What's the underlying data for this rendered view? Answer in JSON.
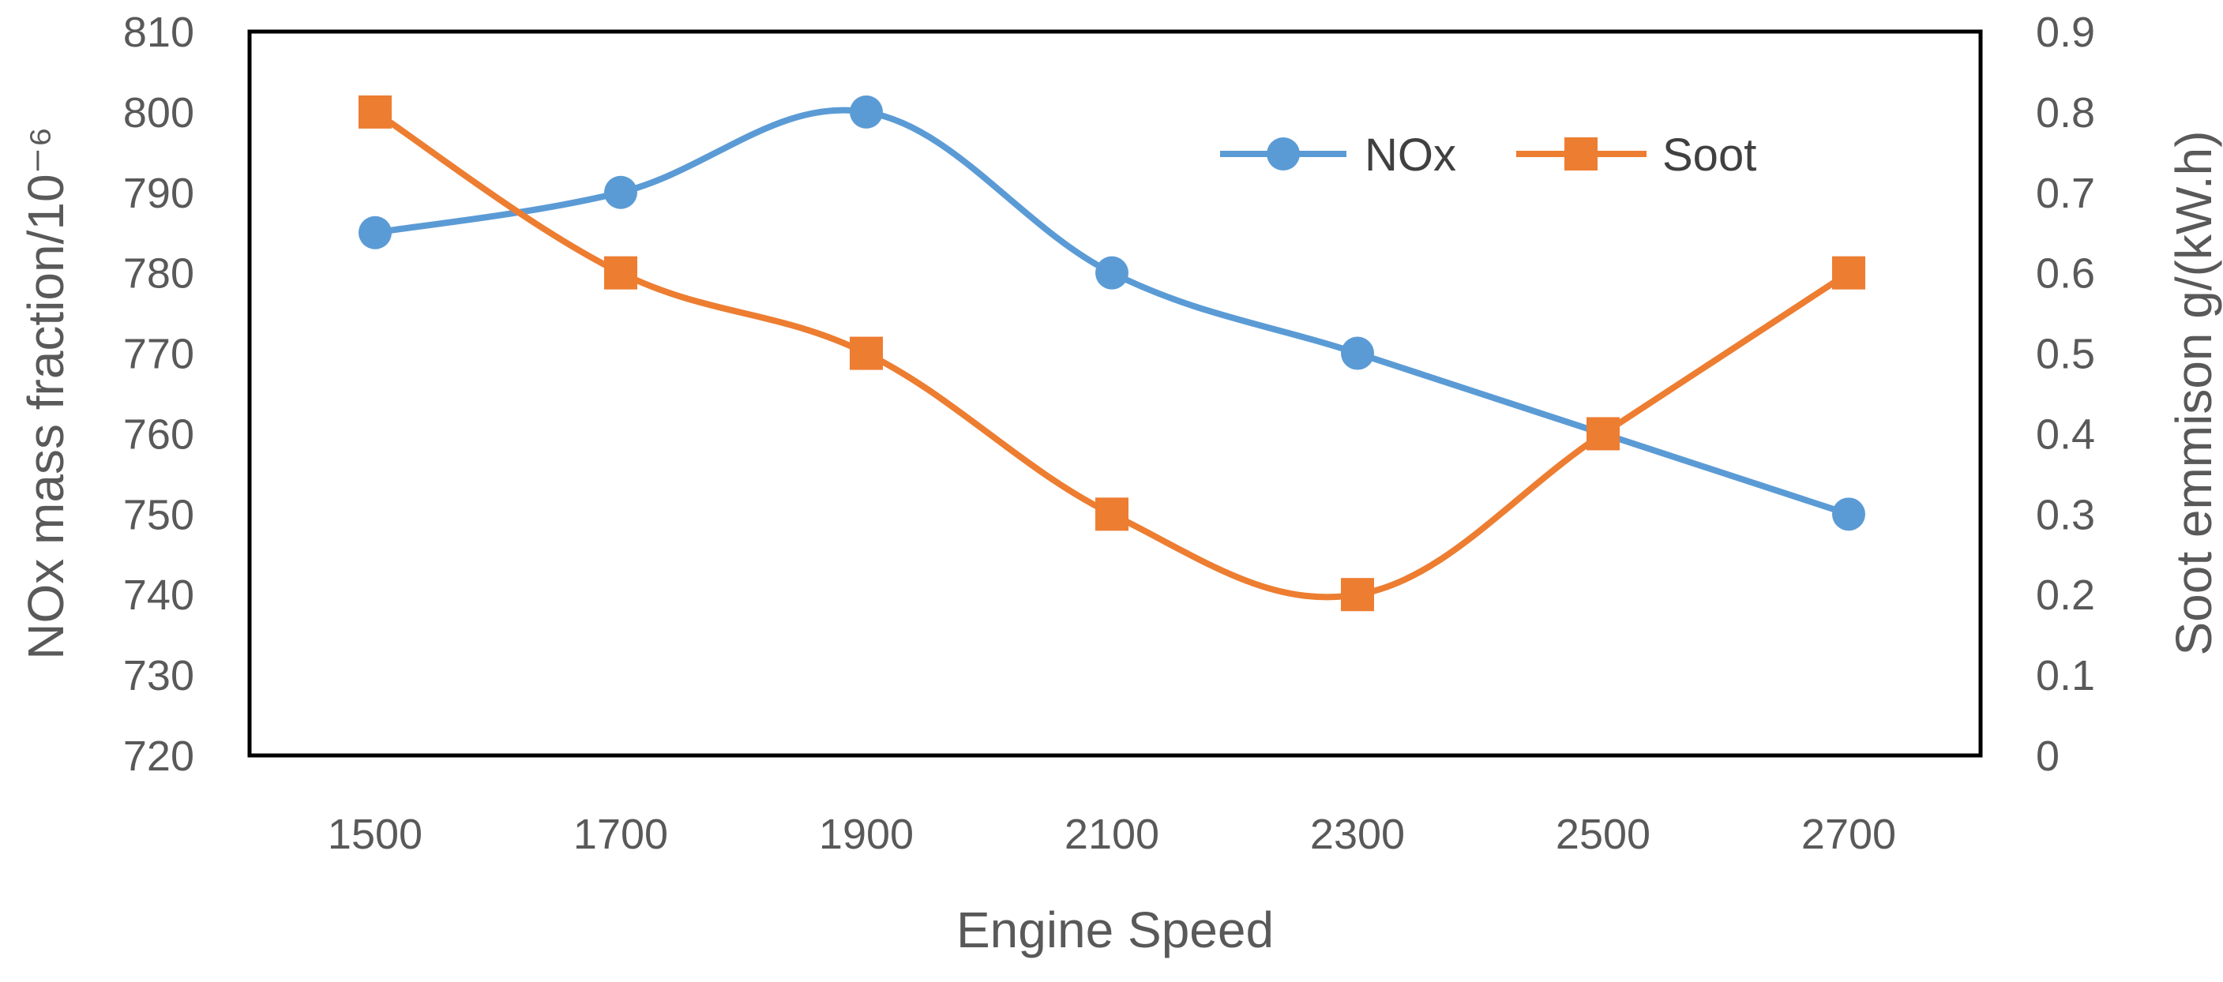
{
  "chart_data": {
    "type": "line",
    "title": "",
    "xlabel": "Engine Speed",
    "ylabel": "NOx mass fraction/10⁻⁶",
    "y2label": "Soot emmison g/(kW.h)",
    "categories": [
      "1500",
      "1700",
      "1900",
      "2100",
      "2300",
      "2500",
      "2700"
    ],
    "ylim": [
      720,
      810
    ],
    "y_ticks": [
      "720",
      "730",
      "740",
      "750",
      "760",
      "770",
      "780",
      "790",
      "800",
      "810"
    ],
    "y2lim": [
      0,
      0.9
    ],
    "y2_ticks": [
      "0",
      "0.1",
      "0.2",
      "0.3",
      "0.4",
      "0.5",
      "0.6",
      "0.7",
      "0.8",
      "0.9"
    ],
    "legend_position": "top-right",
    "series": [
      {
        "name": "NOx",
        "axis": "left",
        "color": "#5B9BD5",
        "marker": "circle",
        "smooth": true,
        "values": [
          785,
          790,
          800,
          780,
          770,
          760,
          750
        ]
      },
      {
        "name": "Soot",
        "axis": "right",
        "color": "#ED7D31",
        "marker": "square",
        "smooth": true,
        "values": [
          0.8,
          0.6,
          0.5,
          0.3,
          0.2,
          0.4,
          0.6
        ]
      }
    ]
  }
}
